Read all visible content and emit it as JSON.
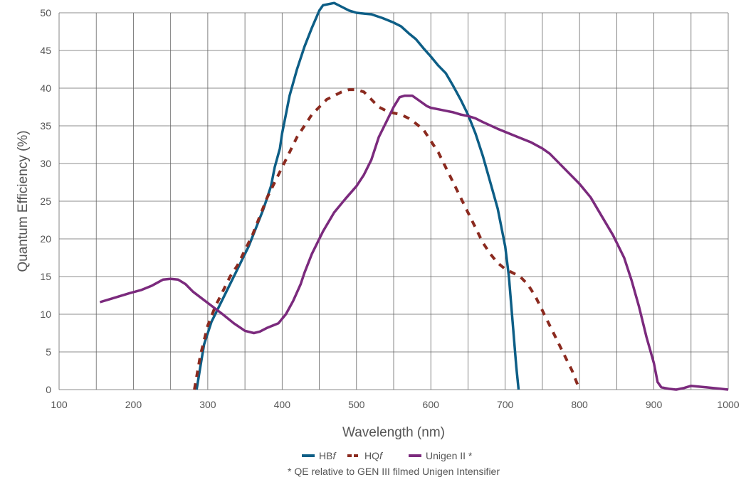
{
  "chart_data": {
    "type": "line",
    "xlabel": "Wavelength (nm)",
    "ylabel": "Quantum Efficiency  (%)",
    "xlim": [
      100,
      1000
    ],
    "ylim": [
      0,
      50
    ],
    "x_ticks": [
      "100",
      "200",
      "300",
      "400",
      "500",
      "600",
      "700",
      "800",
      "900",
      "1000"
    ],
    "y_ticks": [
      "0",
      "5",
      "10",
      "15",
      "20",
      "25",
      "30",
      "35",
      "40",
      "45",
      "50"
    ],
    "grid": true,
    "legend_position": "bottom",
    "footnote": "* QE relative to GEN III filmed Unigen Intensifier",
    "series": [
      {
        "name": "HBf",
        "legend_base": "HB",
        "legend_italic": "f",
        "color": "#0d5e86",
        "style": "solid",
        "points": [
          [
            285,
            0
          ],
          [
            290,
            3
          ],
          [
            295,
            6
          ],
          [
            300,
            7.5
          ],
          [
            305,
            9
          ],
          [
            315,
            11
          ],
          [
            325,
            13
          ],
          [
            340,
            16
          ],
          [
            355,
            19
          ],
          [
            365,
            21.5
          ],
          [
            375,
            24
          ],
          [
            385,
            27
          ],
          [
            390,
            29.5
          ],
          [
            397,
            32
          ],
          [
            400,
            34
          ],
          [
            405,
            36.5
          ],
          [
            410,
            39
          ],
          [
            420,
            42.5
          ],
          [
            430,
            45.5
          ],
          [
            440,
            48
          ],
          [
            450,
            50.3
          ],
          [
            455,
            51
          ],
          [
            470,
            51.3
          ],
          [
            480,
            50.8
          ],
          [
            490,
            50.3
          ],
          [
            500,
            50
          ],
          [
            520,
            49.8
          ],
          [
            535,
            49.3
          ],
          [
            550,
            48.7
          ],
          [
            560,
            48.2
          ],
          [
            570,
            47.3
          ],
          [
            580,
            46.5
          ],
          [
            590,
            45.3
          ],
          [
            600,
            44.2
          ],
          [
            610,
            43
          ],
          [
            620,
            42
          ],
          [
            630,
            40.3
          ],
          [
            640,
            38.5
          ],
          [
            650,
            36.5
          ],
          [
            660,
            34
          ],
          [
            670,
            31
          ],
          [
            680,
            27.5
          ],
          [
            690,
            24
          ],
          [
            700,
            19
          ],
          [
            705,
            15
          ],
          [
            710,
            9
          ],
          [
            715,
            3
          ],
          [
            718,
            0
          ]
        ]
      },
      {
        "name": "HQf",
        "legend_base": "HQ",
        "legend_italic": "f",
        "color": "#8b2a1f",
        "style": "dashed",
        "points": [
          [
            282,
            0
          ],
          [
            290,
            4.5
          ],
          [
            300,
            8.5
          ],
          [
            310,
            11
          ],
          [
            320,
            13
          ],
          [
            330,
            15
          ],
          [
            340,
            16.5
          ],
          [
            350,
            18.5
          ],
          [
            360,
            20.5
          ],
          [
            370,
            23
          ],
          [
            380,
            25.5
          ],
          [
            390,
            27.5
          ],
          [
            400,
            29.5
          ],
          [
            410,
            31.5
          ],
          [
            420,
            33.5
          ],
          [
            430,
            35
          ],
          [
            440,
            36.5
          ],
          [
            450,
            37.5
          ],
          [
            460,
            38.5
          ],
          [
            470,
            39
          ],
          [
            480,
            39.5
          ],
          [
            490,
            39.8
          ],
          [
            500,
            39.8
          ],
          [
            510,
            39.5
          ],
          [
            520,
            38.5
          ],
          [
            530,
            37.5
          ],
          [
            540,
            37
          ],
          [
            550,
            36.7
          ],
          [
            560,
            36.5
          ],
          [
            570,
            36
          ],
          [
            580,
            35.3
          ],
          [
            590,
            34.5
          ],
          [
            600,
            33
          ],
          [
            610,
            31.5
          ],
          [
            620,
            29.5
          ],
          [
            630,
            27.5
          ],
          [
            640,
            25.5
          ],
          [
            650,
            23.5
          ],
          [
            660,
            21.5
          ],
          [
            670,
            19.5
          ],
          [
            680,
            18
          ],
          [
            690,
            16.8
          ],
          [
            700,
            16
          ],
          [
            710,
            15.5
          ],
          [
            720,
            15
          ],
          [
            730,
            14
          ],
          [
            740,
            12.5
          ],
          [
            750,
            10.5
          ],
          [
            760,
            8.5
          ],
          [
            770,
            6.5
          ],
          [
            780,
            4.5
          ],
          [
            790,
            2.5
          ],
          [
            800,
            0
          ]
        ]
      },
      {
        "name": "Unigen II *",
        "legend_base": "Unigen II *",
        "legend_italic": "",
        "color": "#7b2a7d",
        "style": "solid",
        "points": [
          [
            155,
            11.6
          ],
          [
            175,
            12.2
          ],
          [
            195,
            12.8
          ],
          [
            210,
            13.2
          ],
          [
            225,
            13.8
          ],
          [
            240,
            14.6
          ],
          [
            250,
            14.7
          ],
          [
            260,
            14.6
          ],
          [
            270,
            14
          ],
          [
            280,
            13
          ],
          [
            300,
            11.5
          ],
          [
            320,
            10
          ],
          [
            335,
            8.8
          ],
          [
            350,
            7.8
          ],
          [
            362,
            7.5
          ],
          [
            370,
            7.7
          ],
          [
            380,
            8.2
          ],
          [
            395,
            8.8
          ],
          [
            405,
            10
          ],
          [
            415,
            11.8
          ],
          [
            425,
            14
          ],
          [
            430,
            15.5
          ],
          [
            440,
            18
          ],
          [
            455,
            21
          ],
          [
            470,
            23.5
          ],
          [
            485,
            25.3
          ],
          [
            500,
            27
          ],
          [
            510,
            28.5
          ],
          [
            520,
            30.5
          ],
          [
            530,
            33.5
          ],
          [
            540,
            35.5
          ],
          [
            550,
            37.5
          ],
          [
            558,
            38.8
          ],
          [
            565,
            39
          ],
          [
            575,
            39
          ],
          [
            585,
            38.3
          ],
          [
            595,
            37.6
          ],
          [
            600,
            37.4
          ],
          [
            610,
            37.2
          ],
          [
            620,
            37
          ],
          [
            630,
            36.8
          ],
          [
            640,
            36.5
          ],
          [
            650,
            36.3
          ],
          [
            660,
            36
          ],
          [
            670,
            35.5
          ],
          [
            690,
            34.6
          ],
          [
            700,
            34.2
          ],
          [
            710,
            33.8
          ],
          [
            720,
            33.4
          ],
          [
            735,
            32.8
          ],
          [
            750,
            32
          ],
          [
            760,
            31.3
          ],
          [
            770,
            30.3
          ],
          [
            785,
            28.8
          ],
          [
            800,
            27.3
          ],
          [
            815,
            25.5
          ],
          [
            830,
            23
          ],
          [
            845,
            20.5
          ],
          [
            860,
            17.5
          ],
          [
            870,
            14.5
          ],
          [
            880,
            11
          ],
          [
            885,
            9
          ],
          [
            890,
            7
          ],
          [
            900,
            3.5
          ],
          [
            905,
            1
          ],
          [
            910,
            0.3
          ],
          [
            920,
            0.1
          ],
          [
            930,
            0
          ],
          [
            940,
            0.2
          ],
          [
            950,
            0.5
          ],
          [
            960,
            0.4
          ],
          [
            970,
            0.3
          ],
          [
            990,
            0.1
          ],
          [
            1000,
            0
          ]
        ]
      }
    ]
  }
}
